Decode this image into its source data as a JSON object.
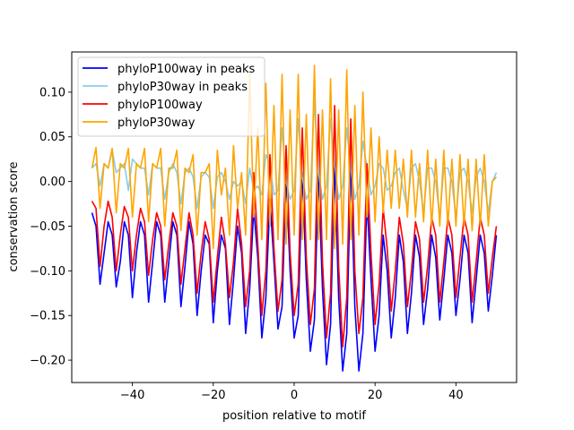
{
  "chart_data": {
    "type": "line",
    "title": "",
    "xlabel": "position relative to motif",
    "ylabel": "conservation score",
    "xlim": [
      -55,
      55
    ],
    "ylim": [
      -0.225,
      0.145
    ],
    "xticks": [
      -40,
      -20,
      0,
      20,
      40
    ],
    "yticks": [
      -0.2,
      -0.15,
      -0.1,
      -0.05,
      0.0,
      0.05,
      0.1
    ],
    "xtick_labels": [
      "−40",
      "−20",
      "0",
      "20",
      "40"
    ],
    "ytick_labels": [
      "−0.20",
      "−0.15",
      "−0.10",
      "−0.05",
      "0.00",
      "0.05",
      "0.10"
    ],
    "grid": false,
    "legend_position": "top-left",
    "x": [
      -50,
      -49,
      -48,
      -47,
      -46,
      -45,
      -44,
      -43,
      -42,
      -41,
      -40,
      -39,
      -38,
      -37,
      -36,
      -35,
      -34,
      -33,
      -32,
      -31,
      -30,
      -29,
      -28,
      -27,
      -26,
      -25,
      -24,
      -23,
      -22,
      -21,
      -20,
      -19,
      -18,
      -17,
      -16,
      -15,
      -14,
      -13,
      -12,
      -11,
      -10,
      -9,
      -8,
      -7,
      -6,
      -5,
      -4,
      -3,
      -2,
      -1,
      0,
      1,
      2,
      3,
      4,
      5,
      6,
      7,
      8,
      9,
      10,
      11,
      12,
      13,
      14,
      15,
      16,
      17,
      18,
      19,
      20,
      21,
      22,
      23,
      24,
      25,
      26,
      27,
      28,
      29,
      30,
      31,
      32,
      33,
      34,
      35,
      36,
      37,
      38,
      39,
      40,
      41,
      42,
      43,
      44,
      45,
      46,
      47,
      48,
      49,
      50
    ],
    "series": [
      {
        "name": "phyloP100way in peaks",
        "color": "#0000ff",
        "values": [
          -0.035,
          -0.05,
          -0.115,
          -0.08,
          -0.045,
          -0.06,
          -0.118,
          -0.09,
          -0.045,
          -0.06,
          -0.13,
          -0.08,
          -0.045,
          -0.06,
          -0.135,
          -0.09,
          -0.045,
          -0.06,
          -0.135,
          -0.09,
          -0.045,
          -0.06,
          -0.14,
          -0.095,
          -0.045,
          -0.07,
          -0.15,
          -0.1,
          -0.06,
          -0.07,
          -0.158,
          -0.1,
          -0.06,
          -0.075,
          -0.16,
          -0.11,
          -0.05,
          -0.08,
          -0.17,
          -0.12,
          -0.03,
          -0.085,
          -0.175,
          -0.13,
          -0.02,
          -0.09,
          -0.165,
          -0.14,
          0.005,
          -0.1,
          -0.175,
          -0.15,
          0.01,
          -0.11,
          -0.19,
          -0.155,
          0.01,
          -0.12,
          -0.205,
          -0.16,
          0.02,
          -0.13,
          -0.212,
          -0.17,
          0.015,
          -0.14,
          -0.212,
          -0.17,
          -0.02,
          -0.11,
          -0.19,
          -0.15,
          -0.06,
          -0.1,
          -0.175,
          -0.13,
          -0.06,
          -0.09,
          -0.17,
          -0.125,
          -0.06,
          -0.085,
          -0.16,
          -0.12,
          -0.06,
          -0.085,
          -0.155,
          -0.11,
          -0.06,
          -0.08,
          -0.15,
          -0.11,
          -0.06,
          -0.08,
          -0.158,
          -0.11,
          -0.06,
          -0.08,
          -0.145,
          -0.105,
          -0.06
        ]
      },
      {
        "name": "phyloP30way in peaks",
        "color": "#87ceeb",
        "values": [
          0.015,
          0.02,
          -0.005,
          0.02,
          0.015,
          0.035,
          0.01,
          0.015,
          0.02,
          -0.01,
          0.025,
          0.02,
          0.015,
          0.015,
          -0.015,
          0.02,
          0.015,
          0.015,
          -0.02,
          0.01,
          0.02,
          0.01,
          -0.025,
          0.01,
          0.015,
          0.005,
          -0.03,
          0.005,
          0.01,
          0.005,
          -0.03,
          0.005,
          0.01,
          0.0,
          -0.02,
          0.0,
          -0.005,
          0.0,
          -0.025,
          0.015,
          -0.01,
          -0.005,
          -0.015,
          0.03,
          0.02,
          -0.015,
          -0.01,
          0.06,
          0.0,
          -0.02,
          -0.01,
          0.07,
          0.005,
          -0.02,
          -0.01,
          0.09,
          0.01,
          -0.02,
          -0.005,
          0.07,
          0.02,
          -0.02,
          -0.005,
          0.06,
          0.015,
          -0.02,
          -0.005,
          0.045,
          0.015,
          -0.015,
          -0.005,
          0.02,
          0.015,
          -0.01,
          -0.005,
          0.01,
          0.015,
          -0.01,
          -0.03,
          0.015,
          0.02,
          0.0,
          -0.035,
          0.015,
          0.015,
          0.0,
          -0.04,
          0.015,
          0.015,
          0.0,
          -0.04,
          0.01,
          0.015,
          0.0,
          -0.035,
          0.005,
          0.015,
          0.0,
          -0.035,
          0.0,
          0.01
        ]
      },
      {
        "name": "phyloP100way",
        "color": "#ff0000",
        "values": [
          -0.022,
          -0.03,
          -0.095,
          -0.05,
          -0.022,
          -0.04,
          -0.1,
          -0.06,
          -0.028,
          -0.04,
          -0.1,
          -0.06,
          -0.03,
          -0.045,
          -0.105,
          -0.065,
          -0.035,
          -0.05,
          -0.11,
          -0.07,
          -0.035,
          -0.05,
          -0.115,
          -0.075,
          -0.035,
          -0.06,
          -0.125,
          -0.08,
          -0.045,
          -0.065,
          -0.135,
          -0.085,
          -0.04,
          -0.07,
          -0.13,
          -0.09,
          -0.03,
          -0.07,
          -0.14,
          -0.1,
          0.01,
          -0.07,
          -0.15,
          -0.1,
          0.03,
          -0.075,
          -0.145,
          -0.11,
          0.04,
          -0.08,
          -0.15,
          -0.115,
          0.06,
          -0.085,
          -0.16,
          -0.12,
          0.075,
          -0.09,
          -0.175,
          -0.125,
          0.085,
          -0.095,
          -0.185,
          -0.13,
          0.07,
          -0.1,
          -0.17,
          -0.13,
          0.02,
          -0.08,
          -0.16,
          -0.115,
          -0.03,
          -0.075,
          -0.145,
          -0.1,
          -0.04,
          -0.07,
          -0.14,
          -0.1,
          -0.045,
          -0.065,
          -0.135,
          -0.095,
          -0.04,
          -0.06,
          -0.135,
          -0.09,
          -0.04,
          -0.06,
          -0.13,
          -0.085,
          -0.04,
          -0.06,
          -0.135,
          -0.09,
          -0.04,
          -0.06,
          -0.125,
          -0.085,
          -0.05
        ]
      },
      {
        "name": "phyloP30way",
        "color": "#ffa500",
        "values": [
          0.015,
          0.038,
          -0.03,
          0.02,
          0.015,
          0.037,
          -0.035,
          0.02,
          0.015,
          0.037,
          -0.04,
          0.02,
          0.015,
          0.037,
          -0.045,
          0.02,
          0.015,
          0.037,
          -0.05,
          0.015,
          0.015,
          0.035,
          -0.055,
          0.015,
          0.01,
          0.03,
          -0.06,
          0.01,
          0.01,
          0.02,
          -0.075,
          0.035,
          -0.015,
          0.015,
          -0.06,
          0.04,
          -0.03,
          0.01,
          -0.06,
          0.12,
          -0.04,
          0.06,
          -0.065,
          0.11,
          -0.05,
          0.085,
          -0.065,
          0.12,
          -0.07,
          0.08,
          -0.06,
          0.12,
          -0.065,
          0.075,
          -0.065,
          0.13,
          -0.065,
          0.08,
          -0.065,
          0.115,
          -0.075,
          0.08,
          -0.07,
          0.125,
          -0.065,
          0.085,
          -0.06,
          0.1,
          -0.04,
          0.06,
          -0.045,
          0.05,
          -0.035,
          0.035,
          -0.03,
          0.035,
          -0.03,
          0.025,
          -0.04,
          0.035,
          -0.04,
          0.02,
          -0.045,
          0.035,
          -0.05,
          0.025,
          -0.05,
          0.035,
          -0.05,
          0.025,
          -0.05,
          0.03,
          -0.05,
          0.025,
          -0.055,
          0.025,
          -0.05,
          0.03,
          -0.05,
          0.0,
          0.005
        ]
      }
    ]
  }
}
